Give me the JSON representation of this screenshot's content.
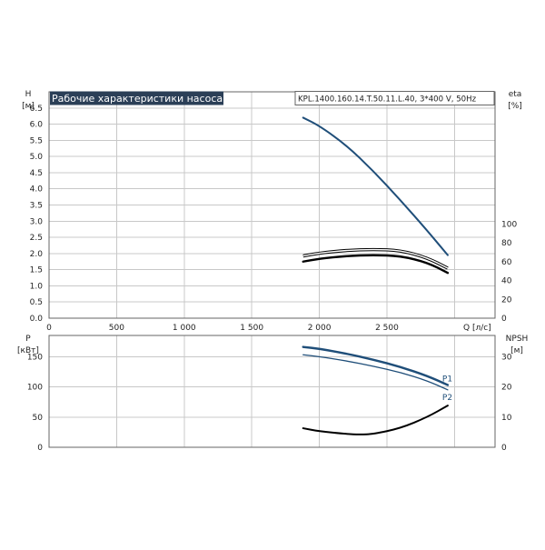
{
  "title": "Рабочие характеристики насоса",
  "model": "KPL.1400.160.14.T.50.11.L.40, 3*400 V, 50Hz",
  "colors": {
    "blue": "#1f4e79",
    "black": "#000000",
    "title_bg": "#2b3f57",
    "grid": "#c8c8c8"
  },
  "chart_data": [
    {
      "type": "line",
      "panel": "top",
      "x_label": "Q [л/с]",
      "xlim": [
        0,
        3300
      ],
      "x_ticks": [
        "0",
        "500",
        "1 000",
        "1 500",
        "2 000",
        "2 500"
      ],
      "x_tick_values": [
        0,
        500,
        1000,
        1500,
        2000,
        2500
      ],
      "y_left_label": [
        "H",
        "[м]"
      ],
      "ylim_left": [
        0,
        7.0
      ],
      "y_left_ticks": [
        "0.0",
        "0.5",
        "1.0",
        "1.5",
        "2.0",
        "2.5",
        "3.0",
        "3.5",
        "4.0",
        "4.5",
        "5.0",
        "5.5",
        "6.0",
        "6.5"
      ],
      "y_left_tick_values": [
        0,
        0.5,
        1.0,
        1.5,
        2.0,
        2.5,
        3.0,
        3.5,
        4.0,
        4.5,
        5.0,
        5.5,
        6.0,
        6.5
      ],
      "y_right_label": [
        "eta",
        "[%]"
      ],
      "ylim_right": [
        0,
        240
      ],
      "y_right_ticks": [
        "0",
        "20",
        "40",
        "60",
        "80",
        "100"
      ],
      "y_right_tick_values": [
        0,
        20,
        40,
        60,
        80,
        100
      ],
      "series": [
        {
          "axis": "left",
          "color": "#1f4e79",
          "width": 2,
          "x": [
            1880,
            2000,
            2200,
            2400,
            2600,
            2800,
            2950
          ],
          "y": [
            6.2,
            5.95,
            5.35,
            4.55,
            3.65,
            2.7,
            1.95
          ]
        },
        {
          "axis": "right",
          "color": "#000000",
          "width": 2,
          "outline": true,
          "x": [
            1880,
            2000,
            2200,
            2400,
            2600,
            2800,
            2950
          ],
          "y": [
            66,
            69,
            72,
            73,
            72,
            64,
            53
          ]
        },
        {
          "axis": "right",
          "color": "#000000",
          "width": 2.4,
          "x": [
            1880,
            2000,
            2200,
            2400,
            2600,
            2800,
            2950
          ],
          "y": [
            60,
            63,
            66,
            67,
            66,
            59,
            48
          ]
        }
      ]
    },
    {
      "type": "line",
      "panel": "bottom",
      "xlim": [
        0,
        3300
      ],
      "y_left_label": [
        "P",
        "[кВт]"
      ],
      "ylim_left": [
        0,
        185
      ],
      "y_left_ticks": [
        "0",
        "50",
        "100",
        "150"
      ],
      "y_left_tick_values": [
        0,
        50,
        100,
        150
      ],
      "y_right_label": [
        "NPSH",
        "[м]"
      ],
      "ylim_right": [
        0,
        37
      ],
      "y_right_ticks": [
        "0",
        "10",
        "20",
        "30"
      ],
      "y_right_tick_values": [
        0,
        10,
        20,
        30
      ],
      "series": [
        {
          "name": "P1",
          "axis": "left",
          "color": "#1f4e79",
          "width": 2.4,
          "x": [
            1880,
            2000,
            2200,
            2400,
            2600,
            2800,
            2950
          ],
          "y": [
            166,
            163,
            155,
            145,
            133,
            118,
            103
          ]
        },
        {
          "name": "P2",
          "axis": "left",
          "color": "#1f4e79",
          "width": 1.3,
          "x": [
            1880,
            2000,
            2200,
            2400,
            2600,
            2800,
            2950
          ],
          "y": [
            153,
            150,
            143,
            134,
            124,
            110,
            95
          ]
        },
        {
          "axis": "right",
          "color": "#000000",
          "width": 2,
          "x": [
            1880,
            2000,
            2200,
            2300,
            2400,
            2600,
            2800,
            2950
          ],
          "y": [
            6.3,
            5.3,
            4.4,
            4.2,
            4.4,
            6.3,
            10.0,
            13.8
          ]
        }
      ]
    }
  ]
}
